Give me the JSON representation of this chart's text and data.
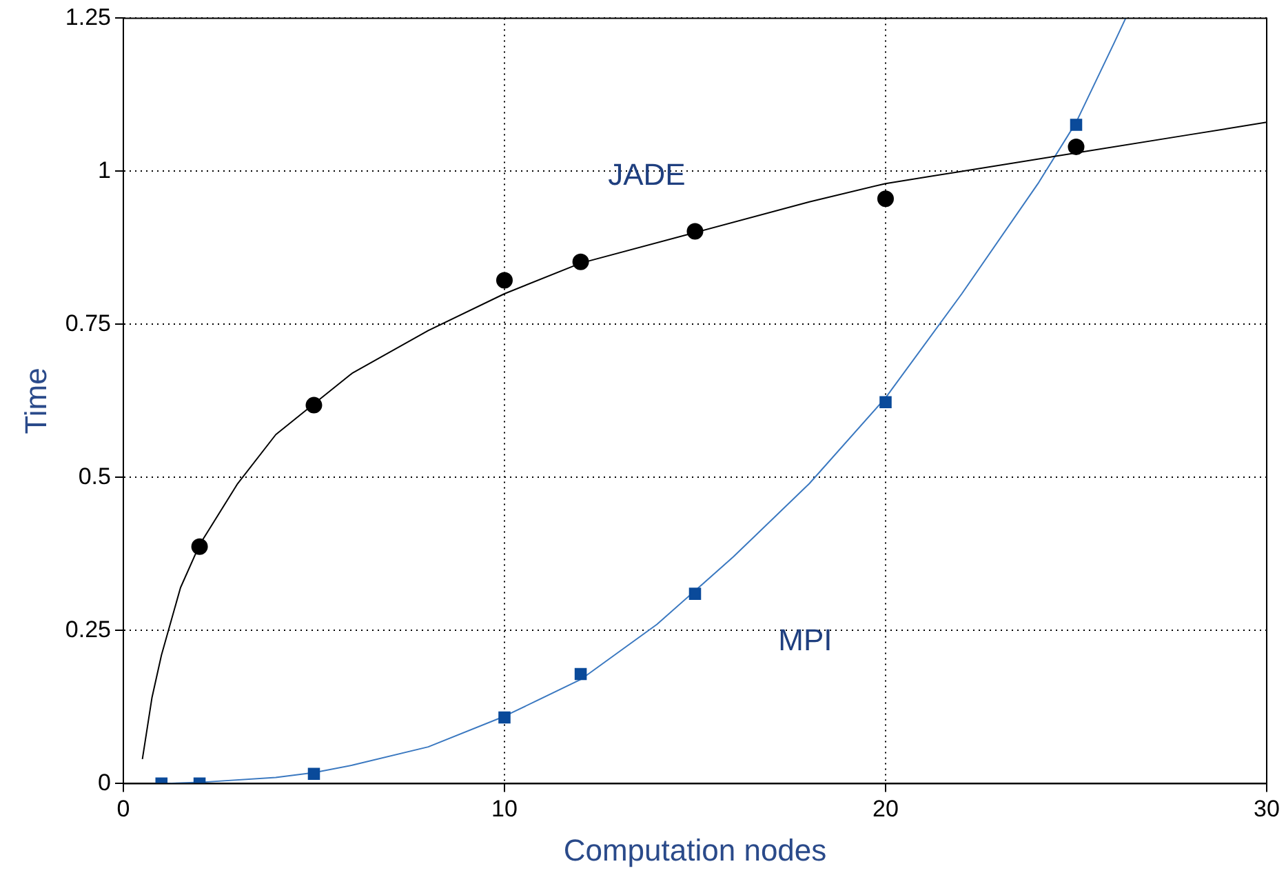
{
  "chart_data": {
    "type": "scatter",
    "xlabel": "Computation nodes",
    "ylabel": "Time",
    "xlim": [
      0,
      30
    ],
    "xticks": [
      0,
      10,
      20,
      30
    ],
    "ylim": [
      0,
      1.25
    ],
    "yticks": [
      0,
      0.25,
      0.5,
      0.75,
      1,
      1.25
    ],
    "grid": true,
    "series": [
      {
        "type": "line",
        "color": "#000000",
        "marker": "none",
        "x": [
          0.5,
          0.75,
          1,
          1.5,
          2,
          3,
          4,
          5,
          6,
          8,
          10,
          12,
          15,
          18,
          20,
          22,
          25,
          28,
          30
        ],
        "values": [
          0.04,
          0.14,
          0.21,
          0.32,
          0.39,
          0.49,
          0.57,
          0.62,
          0.67,
          0.74,
          0.8,
          0.85,
          0.9,
          0.95,
          0.98,
          1.0,
          1.03,
          1.06,
          1.08
        ]
      },
      {
        "type": "line",
        "color": "#3a78c0",
        "marker": "none",
        "x": [
          1,
          2,
          4,
          5,
          6,
          8,
          10,
          12,
          14,
          16,
          18,
          20,
          22,
          24,
          25,
          26,
          26.3
        ],
        "values": [
          0,
          0.002,
          0.01,
          0.018,
          0.03,
          0.06,
          0.11,
          0.17,
          0.26,
          0.37,
          0.49,
          0.63,
          0.8,
          0.98,
          1.08,
          1.21,
          1.25
        ]
      },
      {
        "name": "JADE",
        "color": "#000000",
        "marker": "circle",
        "x": [
          2,
          5,
          10,
          12,
          15,
          20,
          25
        ],
        "values": [
          0.387,
          0.618,
          0.822,
          0.852,
          0.902,
          0.955,
          1.04
        ]
      },
      {
        "name": "MPI",
        "color": "#0a4a9a",
        "marker": "square",
        "x": [
          1,
          2,
          5,
          10,
          12,
          15,
          20,
          25
        ],
        "values": [
          0,
          0,
          0.016,
          0.108,
          0.179,
          0.31,
          0.623,
          1.076
        ]
      }
    ]
  }
}
